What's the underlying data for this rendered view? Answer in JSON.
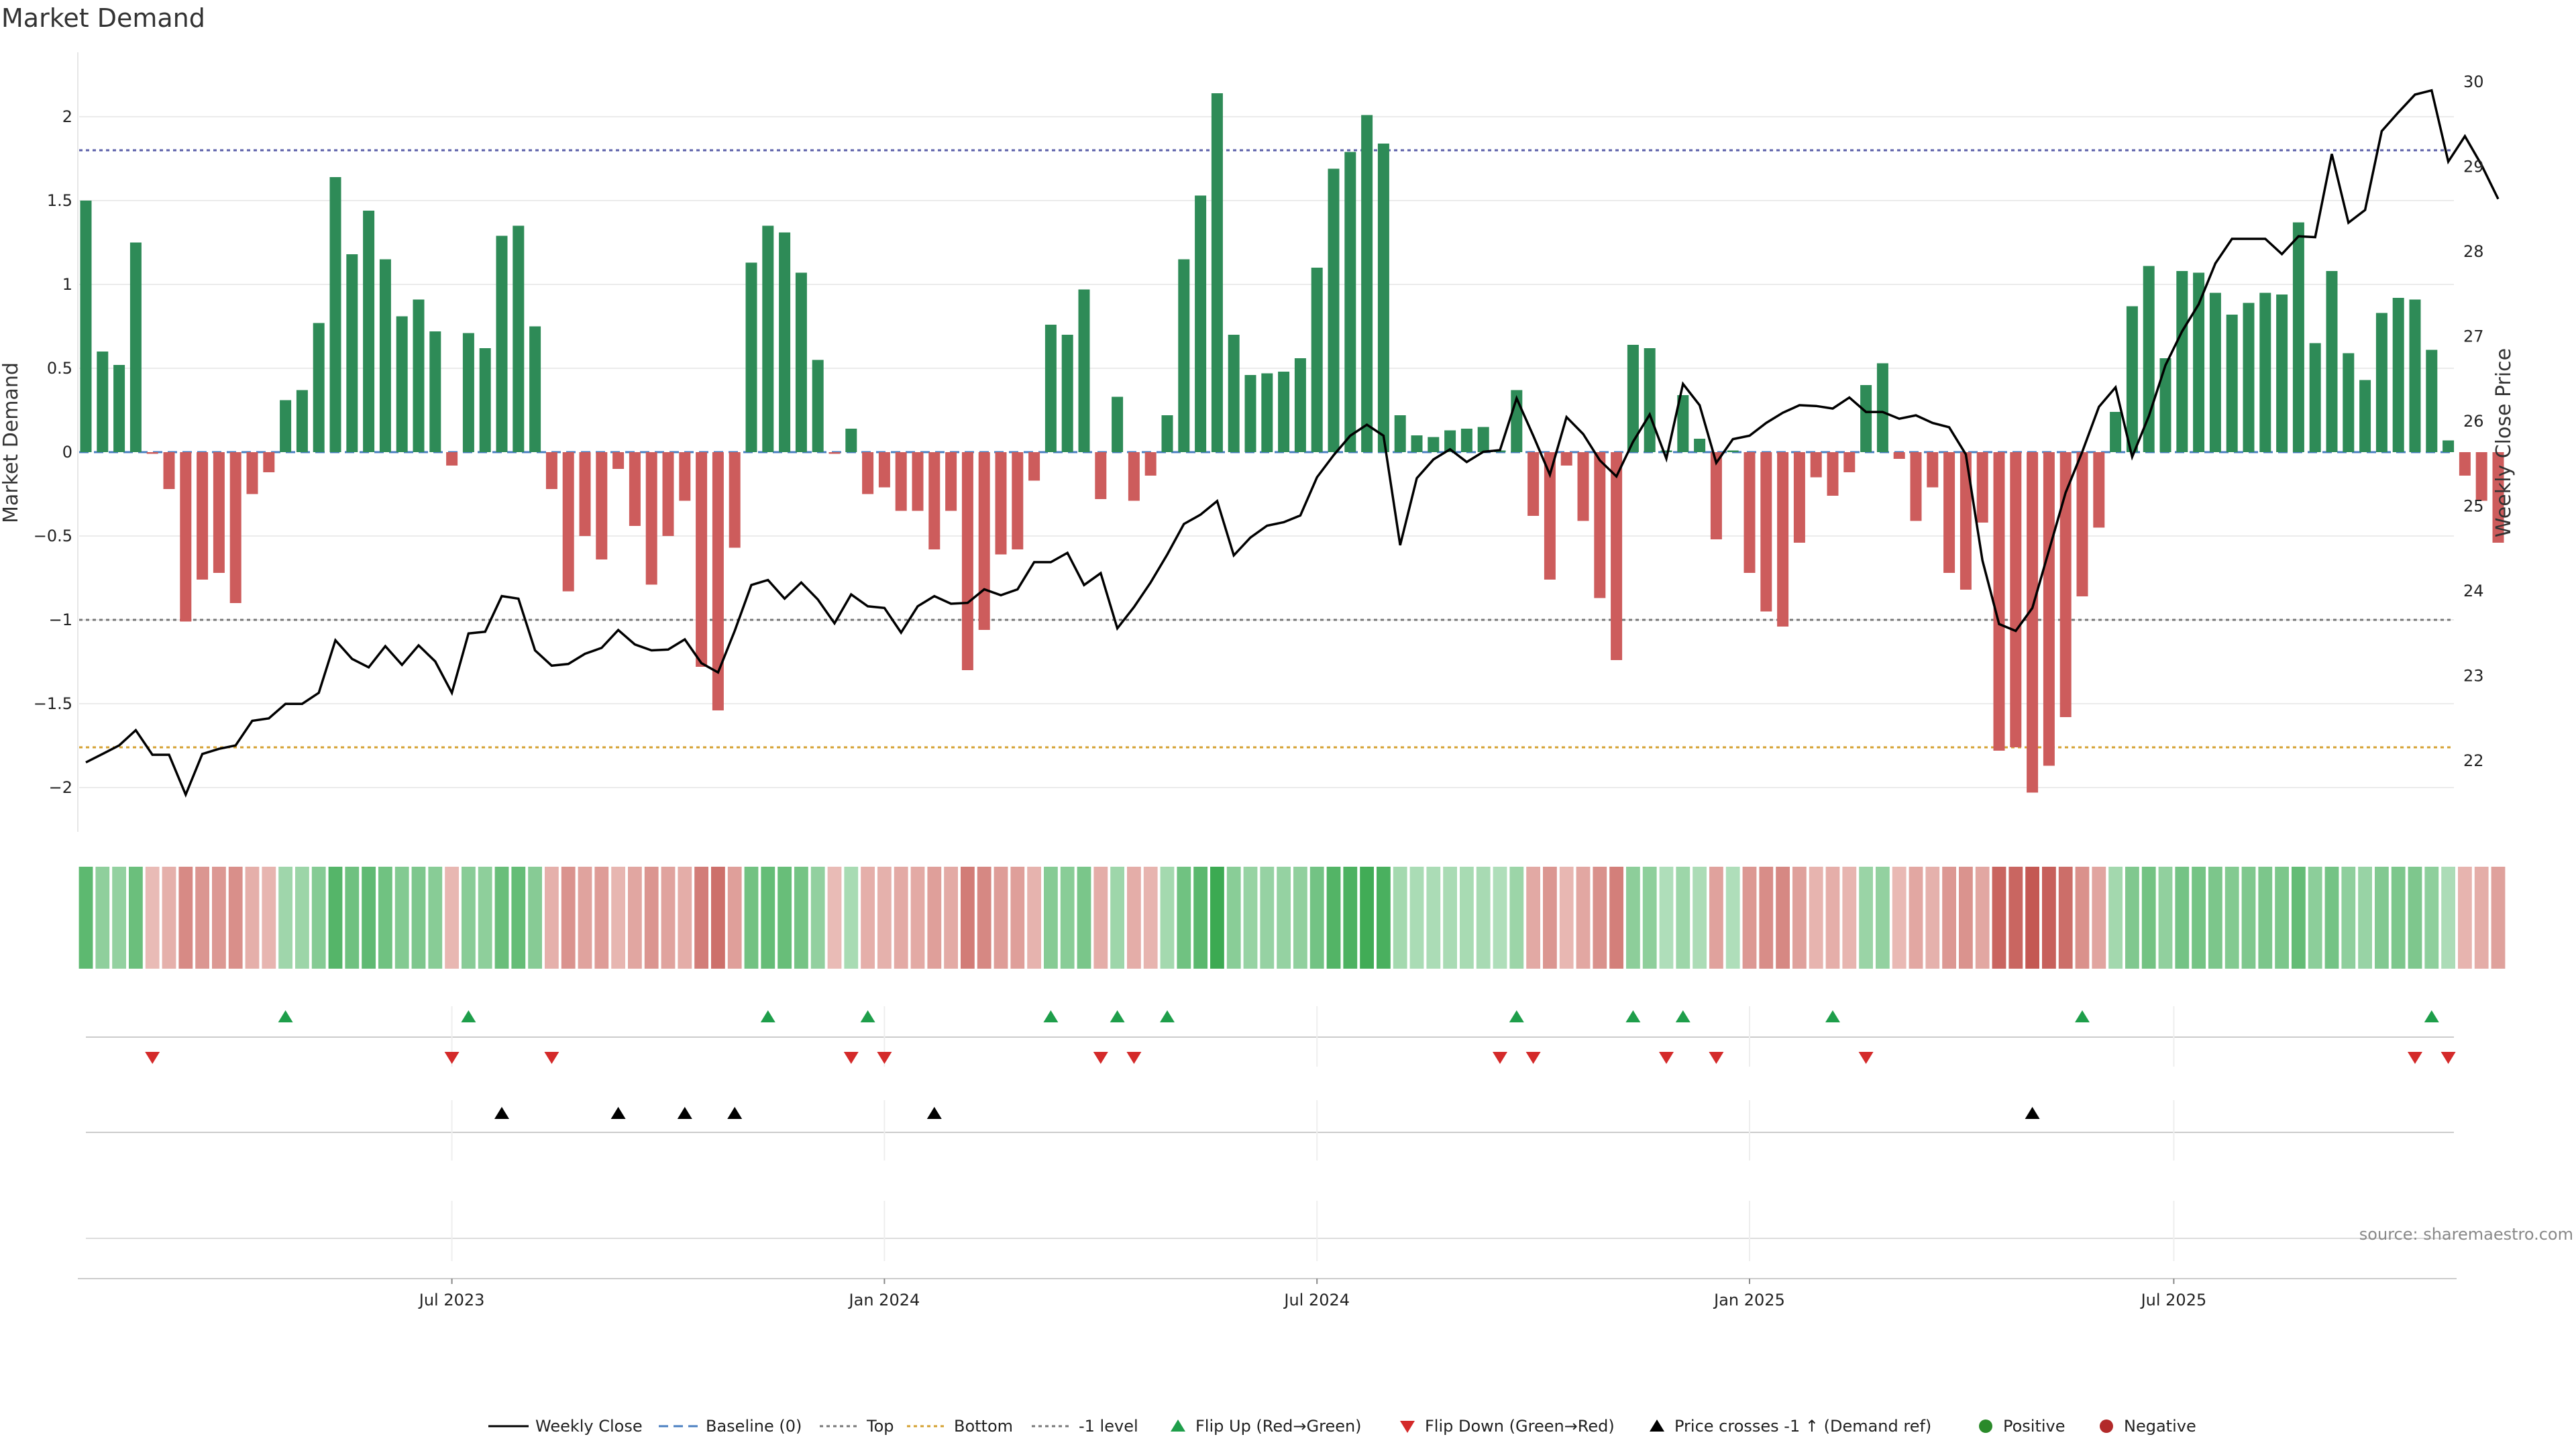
{
  "chart_data": {
    "type": "bar",
    "title": "Market Demand",
    "ylabel": "Market Demand",
    "y2label": "Weekly Close Price",
    "ylim": [
      -2.25,
      2.35
    ],
    "y2lim": [
      21.2,
      30.4
    ],
    "yticks": [
      "2",
      "1.5",
      "1",
      "0.5",
      "0",
      "−0.5",
      "−1",
      "−1.5",
      "−2"
    ],
    "y2ticks": [
      "30",
      "29",
      "28",
      "27",
      "26",
      "25",
      "24",
      "23",
      "22"
    ],
    "xticks": [
      "Jul 2023",
      "Jan 2024",
      "Jul 2024",
      "Jan 2025",
      "Jul 2025"
    ],
    "xtick_positions": [
      22,
      48,
      74,
      100,
      125.5
    ],
    "reference_lines": {
      "top": 1.8,
      "bottom": -1.76,
      "minus_one": -1.0,
      "baseline": 0
    },
    "demand": [
      1.5,
      0.6,
      0.52,
      1.25,
      -0.01,
      -0.22,
      -1.01,
      -0.76,
      -0.72,
      -0.9,
      -0.25,
      -0.12,
      0.31,
      0.37,
      0.77,
      1.64,
      1.18,
      1.44,
      1.15,
      0.81,
      0.91,
      0.72,
      -0.08,
      0.71,
      0.62,
      1.29,
      1.35,
      0.75,
      -0.22,
      -0.83,
      -0.5,
      -0.64,
      -0.1,
      -0.44,
      -0.79,
      -0.5,
      -0.29,
      -1.28,
      -1.54,
      -0.57,
      1.13,
      1.35,
      1.31,
      1.07,
      0.55,
      -0.01,
      0.14,
      -0.25,
      -0.21,
      -0.35,
      -0.35,
      -0.58,
      -0.35,
      -1.3,
      -1.06,
      -0.61,
      -0.58,
      -0.17,
      0.76,
      0.7,
      0.97,
      -0.28,
      0.33,
      -0.29,
      -0.14,
      0.22,
      1.15,
      1.53,
      2.14,
      0.7,
      0.46,
      0.47,
      0.48,
      0.56,
      1.1,
      1.69,
      1.79,
      2.01,
      1.84,
      0.22,
      0.1,
      0.09,
      0.13,
      0.14,
      0.15,
      0.01,
      0.37,
      -0.38,
      -0.76,
      -0.08,
      -0.41,
      -0.87,
      -1.24,
      0.64,
      0.62,
      0.01,
      0.34,
      0.08,
      -0.52,
      0.01,
      -0.72,
      -0.95,
      -1.04,
      -0.54,
      -0.15,
      -0.26,
      -0.12,
      0.4,
      0.53,
      -0.04,
      -0.41,
      -0.21,
      -0.72,
      -0.82,
      -0.42,
      -1.78,
      -1.76,
      -2.03,
      -1.87,
      -1.58,
      -0.86,
      -0.45,
      0.24,
      0.87,
      1.11,
      0.56,
      1.08,
      1.07,
      0.95,
      0.82,
      0.89,
      0.95,
      0.94,
      1.37,
      0.65,
      1.08,
      0.59,
      0.43,
      0.83,
      0.92,
      0.91,
      0.61,
      0.07,
      -0.14,
      -0.29,
      -0.54
    ],
    "series": [
      {
        "name": "Weekly Close",
        "values": [
          21.98,
          22.08,
          22.18,
          22.36,
          22.07,
          22.07,
          21.6,
          22.08,
          22.14,
          22.18,
          22.47,
          22.5,
          22.67,
          22.67,
          22.8,
          23.42,
          23.2,
          23.1,
          23.35,
          23.13,
          23.36,
          23.17,
          22.8,
          23.5,
          23.52,
          23.94,
          23.91,
          23.3,
          23.12,
          23.14,
          23.26,
          23.33,
          23.54,
          23.37,
          23.3,
          23.31,
          23.43,
          23.15,
          23.04,
          23.53,
          24.07,
          24.13,
          23.91,
          24.1,
          23.9,
          23.62,
          23.96,
          23.82,
          23.8,
          23.51,
          23.82,
          23.94,
          23.85,
          23.86,
          24.02,
          23.95,
          24.02,
          24.34,
          24.34,
          24.45,
          24.07,
          24.21,
          23.56,
          23.81,
          24.1,
          24.43,
          24.79,
          24.9,
          25.06,
          24.42,
          24.63,
          24.77,
          24.81,
          24.89,
          25.34,
          25.6,
          25.83,
          25.96,
          25.83,
          24.54,
          25.33,
          25.55,
          25.67,
          25.52,
          25.64,
          25.66,
          26.27,
          25.83,
          25.37,
          26.05,
          25.85,
          25.54,
          25.35,
          25.76,
          26.08,
          25.56,
          26.44,
          26.19,
          25.51,
          25.79,
          25.83,
          25.98,
          26.1,
          26.19,
          26.18,
          26.15,
          26.28,
          26.11,
          26.11,
          26.03,
          26.07,
          25.98,
          25.93,
          25.61,
          24.36,
          23.61,
          23.53,
          23.8,
          24.48,
          25.16,
          25.64,
          26.17,
          26.4,
          25.58,
          26.06,
          26.66,
          27.06,
          27.38,
          27.86,
          28.15,
          28.15,
          28.15,
          27.97,
          28.18,
          28.17,
          29.15,
          28.34,
          28.49,
          29.42,
          29.64,
          29.85,
          29.9,
          29.06,
          29.36,
          29.02,
          28.62
        ]
      }
    ],
    "flip_up": [
      12,
      23,
      41,
      47,
      58,
      62,
      65,
      86,
      93,
      96,
      105,
      120,
      141
    ],
    "flip_down": [
      4,
      22,
      28,
      46,
      48,
      61,
      63,
      85,
      87,
      95,
      98,
      107,
      140,
      142
    ],
    "price_crosses": [
      25,
      32,
      36,
      39,
      51,
      117
    ],
    "legend": [
      "Weekly Close",
      "Baseline (0)",
      "Top",
      "Bottom",
      "-1 level",
      "Flip Up (Red→Green)",
      "Flip Down (Green→Red)",
      "Price crosses -1 ↑ (Demand ref)",
      "Positive",
      "Negative"
    ],
    "source": "source: sharemaestro.com",
    "colors": {
      "positive": "#2e8b57",
      "negative": "#cd5c5c",
      "line": "#000000",
      "top": "#5a5ea8",
      "bottom": "#d4a030",
      "minus_one": "#777777",
      "baseline": "#4a7fc1",
      "flip_up": "#1e9e4a",
      "flip_down": "#d42a2a",
      "crosses": "#000000"
    }
  }
}
